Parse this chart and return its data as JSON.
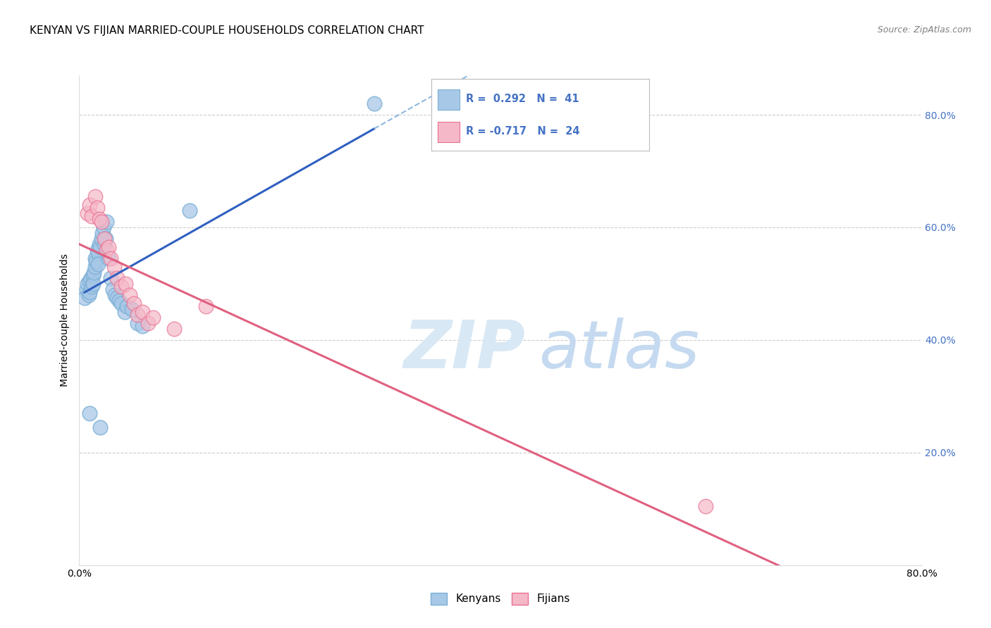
{
  "title": "KENYAN VS FIJIAN MARRIED-COUPLE HOUSEHOLDS CORRELATION CHART",
  "source": "Source: ZipAtlas.com",
  "ylabel": "Married-couple Households",
  "xlim": [
    0.0,
    0.8
  ],
  "ylim": [
    0.0,
    0.87
  ],
  "kenyan_R": 0.292,
  "kenyan_N": 41,
  "fijian_R": -0.717,
  "fijian_N": 24,
  "kenyan_color": "#a8c8e8",
  "kenyan_edge_color": "#7aafd4",
  "kenyan_line_color": "#3060c0",
  "kenyan_dash_color": "#90b8e0",
  "fijian_color": "#f5b8c8",
  "fijian_edge_color": "#e87090",
  "fijian_line_color": "#e06080",
  "watermark_zip_color": "#d8e8f5",
  "watermark_atlas_color": "#c5daf0",
  "background_color": "#ffffff",
  "grid_color": "#cccccc",
  "right_tick_color": "#4472c4",
  "title_fontsize": 11,
  "axis_label_fontsize": 10,
  "tick_fontsize": 10
}
